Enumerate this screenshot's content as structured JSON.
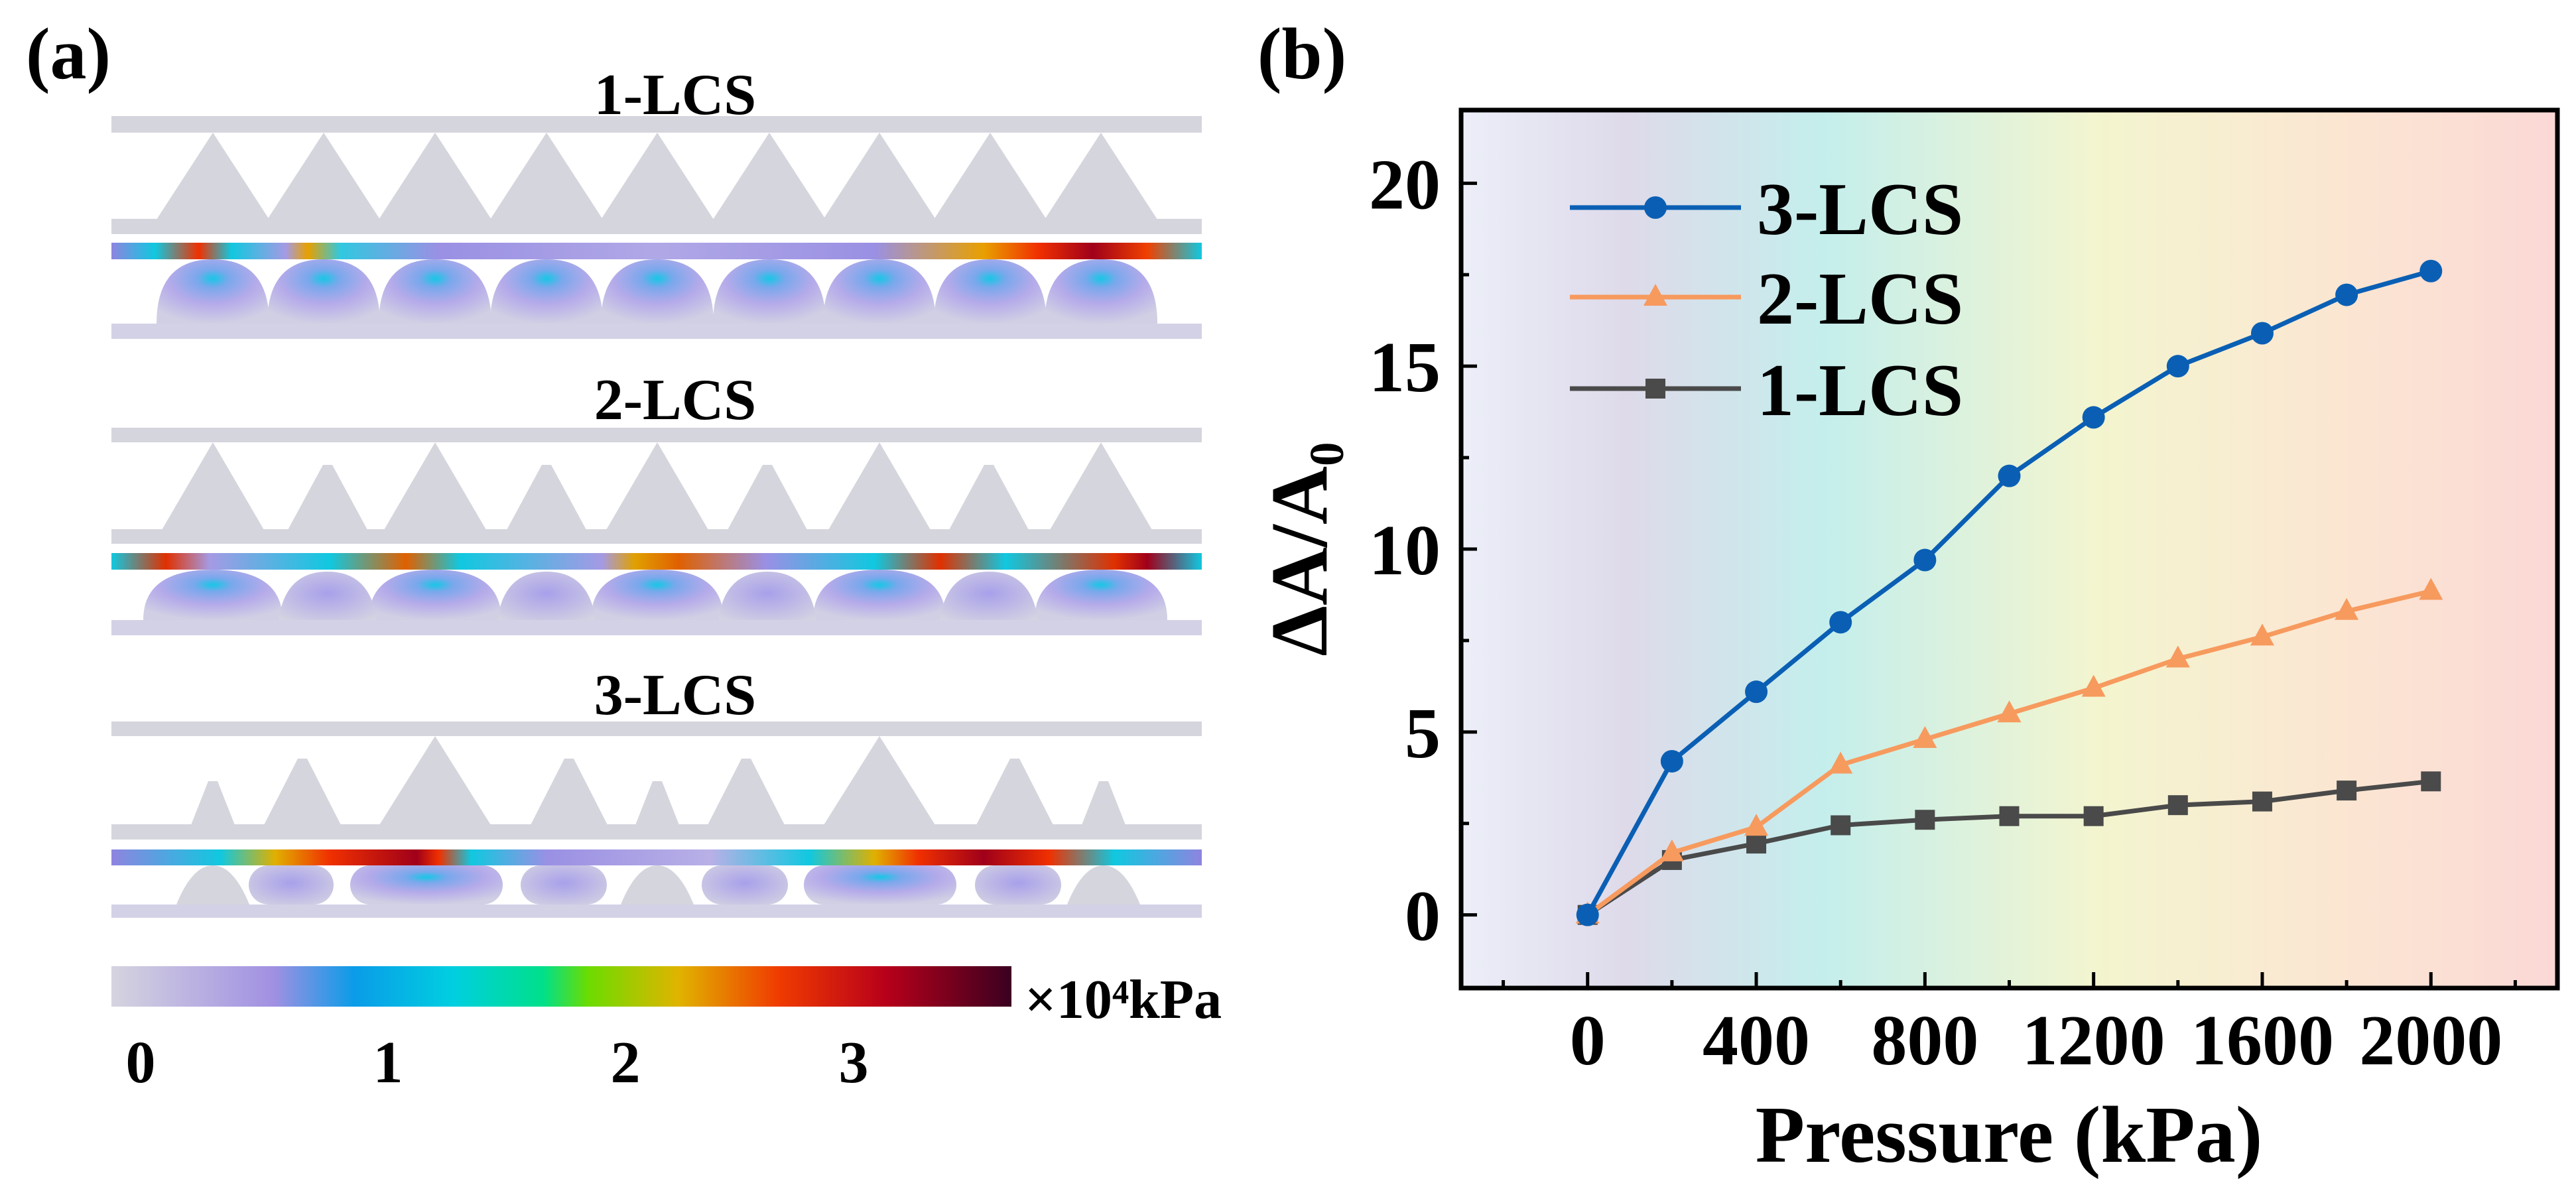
{
  "panel_a": {
    "label": "(a)",
    "structures": [
      {
        "title": "1-LCS"
      },
      {
        "title": "2-LCS"
      },
      {
        "title": "3-LCS"
      }
    ],
    "colorbar": {
      "ticks": [
        "0",
        "1",
        "2",
        "3"
      ],
      "unit": "×10⁴kPa"
    }
  },
  "panel_b": {
    "label": "(b)"
  },
  "chart_data": {
    "type": "line",
    "title": "",
    "xlabel": "Pressure (kPa)",
    "ylabel": "ΔA/A₀",
    "xlim": [
      -300,
      2300
    ],
    "ylim": [
      -2,
      22
    ],
    "xticks": [
      0,
      400,
      800,
      1200,
      1600,
      2000
    ],
    "yticks": [
      0,
      5,
      10,
      15,
      20
    ],
    "grid": false,
    "legend_position": "top-left",
    "x": [
      0,
      200,
      400,
      600,
      800,
      1000,
      1200,
      1400,
      1600,
      1800,
      2000
    ],
    "series": [
      {
        "name": "3-LCS",
        "color": "#0a5fb4",
        "marker": "circle",
        "values": [
          0,
          4.2,
          6.1,
          8.0,
          9.7,
          12.0,
          13.6,
          15.0,
          15.9,
          16.95,
          17.6
        ]
      },
      {
        "name": "2-LCS",
        "color": "#f79a5e",
        "marker": "triangle",
        "values": [
          0,
          1.7,
          2.4,
          4.1,
          4.8,
          5.5,
          6.2,
          7.0,
          7.6,
          8.3,
          8.85
        ]
      },
      {
        "name": "1-LCS",
        "color": "#4a4a4a",
        "marker": "square",
        "values": [
          0,
          1.5,
          1.95,
          2.45,
          2.6,
          2.7,
          2.7,
          3.0,
          3.1,
          3.4,
          3.65
        ]
      }
    ]
  }
}
